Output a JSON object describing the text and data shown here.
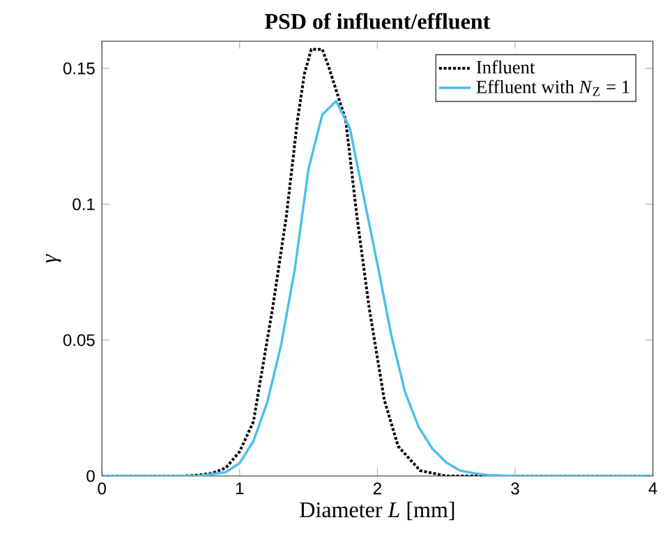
{
  "chart_data": {
    "type": "line",
    "title": "PSD of influent/effluent",
    "xlabel": "Diameter *L* [mm]",
    "ylabel": "*γ*",
    "xlim": [
      0,
      4
    ],
    "ylim": [
      0,
      0.16
    ],
    "xticks": [
      0,
      1,
      2,
      3,
      4
    ],
    "yticks": [
      0,
      0.05,
      0.1,
      0.15
    ],
    "legend": "top right",
    "grid": false,
    "series": [
      {
        "name": "Influent",
        "color": "#000000",
        "line_style": "dotted",
        "x": [
          0,
          0.6,
          0.7,
          0.8,
          0.9,
          1.0,
          1.1,
          1.24,
          1.34,
          1.42,
          1.47,
          1.52,
          1.6,
          1.65,
          1.77,
          1.85,
          1.94,
          2.05,
          2.15,
          2.31,
          2.5,
          4
        ],
        "values": [
          0,
          0,
          0.0003,
          0.001,
          0.003,
          0.009,
          0.02,
          0.062,
          0.096,
          0.131,
          0.148,
          0.157,
          0.157,
          0.15,
          0.131,
          0.096,
          0.062,
          0.028,
          0.011,
          0.002,
          0,
          0
        ]
      },
      {
        "name": "Effluent with *N*$_{Z}$ = 1",
        "color": "#4dbeee",
        "line_style": "solid",
        "x": [
          0,
          0.7,
          0.9,
          1.0,
          1.1,
          1.2,
          1.3,
          1.4,
          1.5,
          1.6,
          1.7,
          1.8,
          1.9,
          2.0,
          2.1,
          2.2,
          2.3,
          2.4,
          2.5,
          2.6,
          2.7,
          2.8,
          3.0,
          4
        ],
        "values": [
          0,
          0,
          0.0014,
          0.0048,
          0.0128,
          0.027,
          0.048,
          0.076,
          0.113,
          0.133,
          0.138,
          0.128,
          0.103,
          0.078,
          0.052,
          0.031,
          0.018,
          0.01,
          0.005,
          0.002,
          0.001,
          0.0004,
          0,
          0
        ]
      }
    ]
  }
}
